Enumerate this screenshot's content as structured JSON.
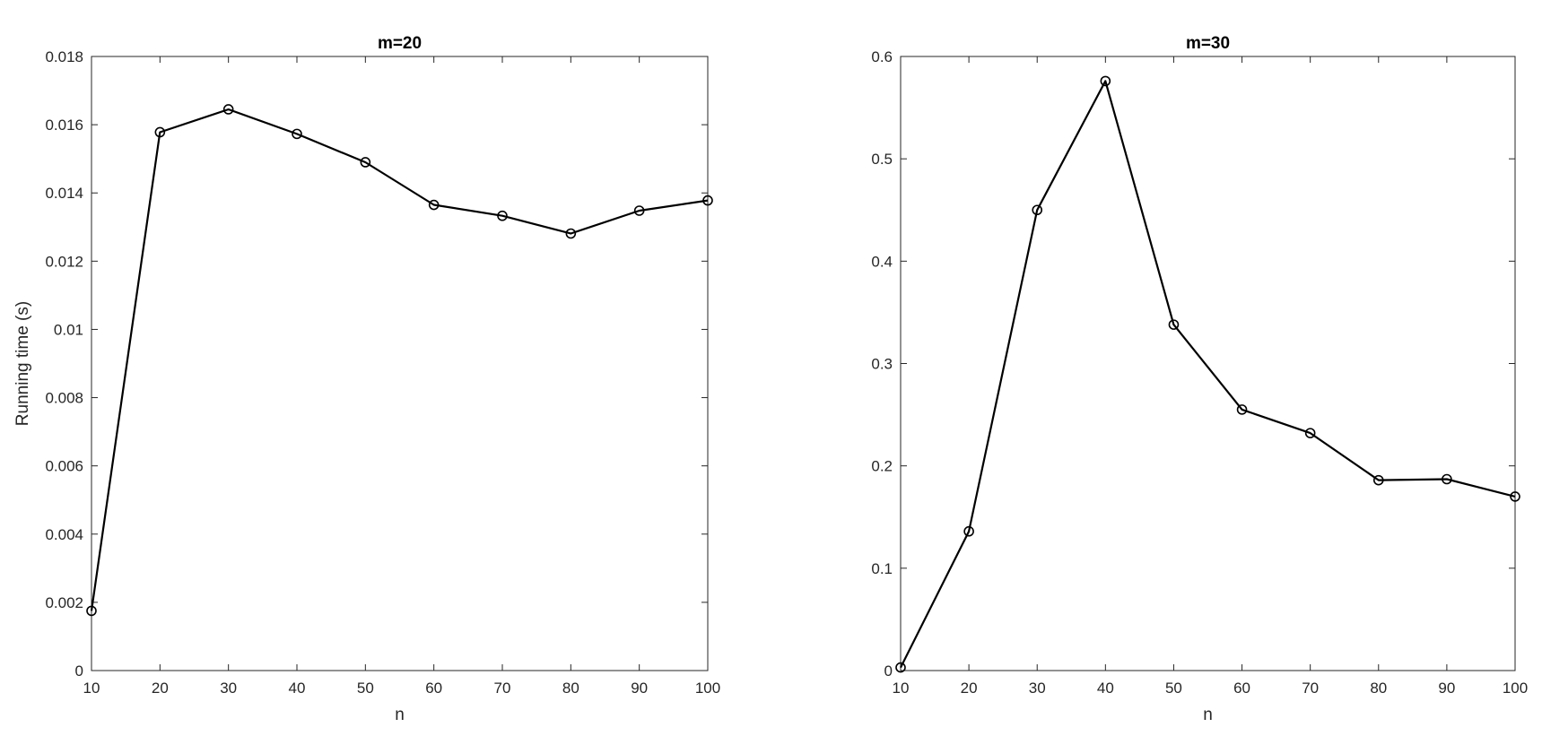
{
  "chart_data": [
    {
      "type": "line",
      "title": "m=20",
      "xlabel": "n",
      "ylabel": "Running time (s)",
      "xlim": [
        10,
        100
      ],
      "ylim": [
        0,
        0.018
      ],
      "xticks": [
        "10",
        "20",
        "30",
        "40",
        "50",
        "60",
        "70",
        "80",
        "90",
        "100"
      ],
      "yticks": [
        "0",
        "0.002",
        "0.004",
        "0.006",
        "0.008",
        "0.01",
        "0.012",
        "0.014",
        "0.016",
        "0.018"
      ],
      "grid": false,
      "marker": "circle",
      "line_color": "#000000",
      "x": [
        10,
        20,
        30,
        40,
        50,
        60,
        70,
        80,
        90,
        100
      ],
      "values": [
        0.00175,
        0.01578,
        0.01645,
        0.01573,
        0.0149,
        0.01365,
        0.01333,
        0.01281,
        0.01348,
        0.01378
      ]
    },
    {
      "type": "line",
      "title": "m=30",
      "xlabel": "n",
      "ylabel": "",
      "xlim": [
        10,
        100
      ],
      "ylim": [
        0,
        0.6
      ],
      "xticks": [
        "10",
        "20",
        "30",
        "40",
        "50",
        "60",
        "70",
        "80",
        "90",
        "100"
      ],
      "yticks": [
        "0",
        "0.1",
        "0.2",
        "0.3",
        "0.4",
        "0.5",
        "0.6"
      ],
      "grid": false,
      "marker": "circle",
      "line_color": "#000000",
      "x": [
        10,
        20,
        30,
        40,
        50,
        60,
        70,
        80,
        90,
        100
      ],
      "values": [
        0.003,
        0.136,
        0.45,
        0.576,
        0.338,
        0.255,
        0.232,
        0.186,
        0.187,
        0.17
      ]
    }
  ]
}
